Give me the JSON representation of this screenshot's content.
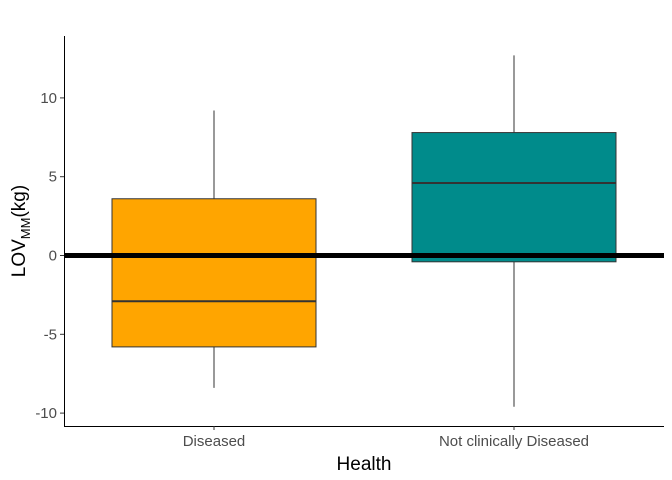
{
  "chart_data": {
    "type": "boxplot",
    "xlabel": "Health",
    "ylabel": {
      "base": "LOV",
      "subscript": "MM",
      "suffix": "(kg)"
    },
    "ylim": [
      -11,
      14
    ],
    "yticks": [
      -10,
      -5,
      0,
      5,
      10
    ],
    "ytick_labels": [
      "-10",
      "-5",
      "0",
      "5",
      "10"
    ],
    "categories": [
      "Diseased",
      "Not clinically Diseased"
    ],
    "boxes": [
      {
        "category": "Diseased",
        "whisker_low": -8.4,
        "q1": -5.8,
        "median": -2.9,
        "q3": 3.6,
        "whisker_high": 9.2,
        "fill": "#FFA500"
      },
      {
        "category": "Not clinically Diseased",
        "whisker_low": -9.6,
        "q1": -0.4,
        "median": 4.6,
        "q3": 7.8,
        "whisker_high": 12.7,
        "fill": "#008B8B"
      }
    ],
    "reference_line": {
      "y": 0,
      "color": "#000000"
    },
    "grid": false,
    "legend": "none"
  }
}
